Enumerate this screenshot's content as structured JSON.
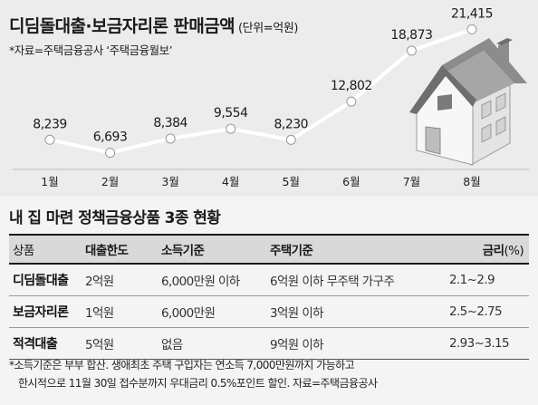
{
  "chart_data": {
    "type": "line",
    "title": "디딤돌대출·보금자리론 판매금액",
    "unit": "(단위=억원)",
    "source": "*자료=주택금융공사 ‘주택금융월보’",
    "categories": [
      "1월",
      "2월",
      "3월",
      "4월",
      "5월",
      "6월",
      "7월",
      "8월"
    ],
    "values": [
      8239,
      6693,
      8384,
      9554,
      8230,
      12802,
      18873,
      21415
    ],
    "value_labels": [
      "8,239",
      "6,693",
      "8,384",
      "9,554",
      "8,230",
      "12,802",
      "18,873",
      "21,415"
    ],
    "grid": false,
    "legend": "none",
    "colors": {
      "line": "#ffffff",
      "marker_fill": "#ffffff",
      "marker_stroke": "#9a9a9a"
    }
  },
  "decoration": {
    "house_icon": "house-icon"
  },
  "table": {
    "title": "내 집 마련 정책금융상품 3종 현황",
    "headers": {
      "product": "상품",
      "limit": "대출한도",
      "income": "소득기준",
      "house": "주택기준",
      "rate": "금리",
      "rate_unit": "(%)"
    },
    "rows": [
      {
        "name": "디딤돌대출",
        "limit": "2억원",
        "income": "6,000만원 이하",
        "house": "6억원 이하 무주택 가구주",
        "rate": "2.1~2.9"
      },
      {
        "name": "보금자리론",
        "limit": "1억원",
        "income": "6,000만원",
        "house": "3억원 이하",
        "rate": "2.5~2.75"
      },
      {
        "name": "적격대출",
        "limit": "5억원",
        "income": "없음",
        "house": "9억원 이하",
        "rate": "2.93~3.15"
      }
    ]
  },
  "footnote": {
    "line1": "*소득기준은 부부 합산. 생애최초 주택 구입자는 연소득 7,000만원까지 가능하고",
    "line2": "한시적으로 11월 30일 접수분까지 우대금리 0.5%포인트 할인. 자료=주택금융공사"
  }
}
